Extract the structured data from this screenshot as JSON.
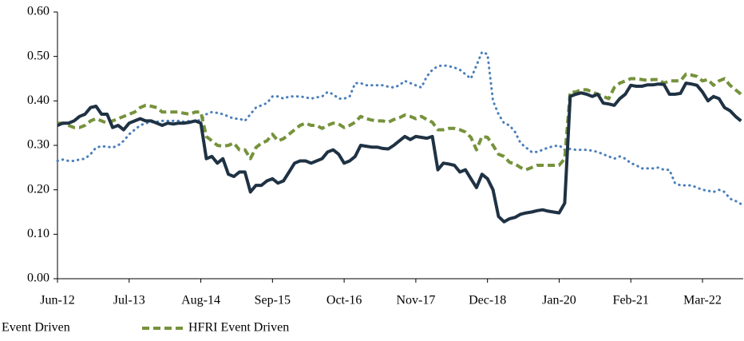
{
  "chart_data": {
    "type": "line",
    "categories": [
      "Jun-12",
      null,
      null,
      null,
      null,
      null,
      null,
      null,
      null,
      null,
      null,
      null,
      null,
      "Jul-13",
      null,
      null,
      null,
      null,
      null,
      null,
      null,
      null,
      null,
      null,
      null,
      null,
      "Aug-14",
      null,
      null,
      null,
      null,
      null,
      null,
      null,
      null,
      null,
      null,
      null,
      null,
      "Sep-15",
      null,
      null,
      null,
      null,
      null,
      null,
      null,
      null,
      null,
      null,
      null,
      null,
      "Oct-16",
      null,
      null,
      null,
      null,
      null,
      null,
      null,
      null,
      null,
      null,
      null,
      null,
      "Nov-17",
      null,
      null,
      null,
      null,
      null,
      null,
      null,
      null,
      null,
      null,
      null,
      null,
      "Dec-18",
      null,
      null,
      null,
      null,
      null,
      null,
      null,
      null,
      null,
      null,
      null,
      null,
      "Jan-20",
      null,
      null,
      null,
      null,
      null,
      null,
      null,
      null,
      null,
      null,
      null,
      null,
      "Feb-21",
      null,
      null,
      null,
      null,
      null,
      null,
      null,
      null,
      null,
      null,
      null,
      null,
      "Mar-22",
      null,
      null,
      null,
      null,
      null,
      null,
      null
    ],
    "series": [
      {
        "name": "Event Driven",
        "color": "#1f3244",
        "style": "solid",
        "values": [
          0.345,
          0.35,
          0.35,
          0.355,
          0.365,
          0.37,
          0.385,
          0.388,
          0.37,
          0.37,
          0.34,
          0.345,
          0.335,
          0.35,
          0.355,
          0.36,
          0.355,
          0.355,
          0.35,
          0.345,
          0.35,
          0.348,
          0.35,
          0.35,
          0.352,
          0.355,
          0.35,
          0.27,
          0.275,
          0.26,
          0.27,
          0.235,
          0.23,
          0.24,
          0.24,
          0.195,
          0.21,
          0.21,
          0.22,
          0.225,
          0.215,
          0.22,
          0.24,
          0.26,
          0.265,
          0.265,
          0.26,
          0.265,
          0.27,
          0.285,
          0.29,
          0.28,
          0.26,
          0.265,
          0.275,
          0.3,
          0.298,
          0.296,
          0.296,
          0.293,
          0.292,
          0.3,
          0.31,
          0.32,
          0.313,
          0.32,
          0.318,
          0.316,
          0.32,
          0.245,
          0.26,
          0.258,
          0.255,
          0.24,
          0.245,
          0.225,
          0.205,
          0.235,
          0.225,
          0.2,
          0.14,
          0.128,
          0.135,
          0.138,
          0.145,
          0.148,
          0.15,
          0.153,
          0.155,
          0.152,
          0.15,
          0.148,
          0.17,
          0.41,
          0.415,
          0.418,
          0.415,
          0.41,
          0.415,
          0.395,
          0.393,
          0.39,
          0.405,
          0.415,
          0.435,
          0.433,
          0.433,
          0.436,
          0.436,
          0.438,
          0.437,
          0.415,
          0.415,
          0.417,
          0.44,
          0.438,
          0.435,
          0.42,
          0.4,
          0.41,
          0.405,
          0.385,
          0.378,
          0.365,
          0.355
        ]
      },
      {
        "name": "HFRI Event Driven",
        "color": "#76923c",
        "style": "dashed",
        "values": [
          0.35,
          0.35,
          0.345,
          0.34,
          0.34,
          0.345,
          0.355,
          0.36,
          0.355,
          0.35,
          0.355,
          0.36,
          0.365,
          0.37,
          0.375,
          0.385,
          0.39,
          0.388,
          0.385,
          0.375,
          0.375,
          0.375,
          0.375,
          0.372,
          0.37,
          0.375,
          0.375,
          0.32,
          0.31,
          0.3,
          0.298,
          0.3,
          0.305,
          0.29,
          0.29,
          0.27,
          0.295,
          0.305,
          0.31,
          0.325,
          0.31,
          0.315,
          0.325,
          0.335,
          0.345,
          0.35,
          0.345,
          0.345,
          0.338,
          0.345,
          0.35,
          0.348,
          0.34,
          0.345,
          0.352,
          0.365,
          0.36,
          0.357,
          0.355,
          0.355,
          0.352,
          0.358,
          0.362,
          0.368,
          0.365,
          0.36,
          0.365,
          0.358,
          0.352,
          0.335,
          0.335,
          0.338,
          0.338,
          0.335,
          0.33,
          0.318,
          0.29,
          0.32,
          0.318,
          0.3,
          0.28,
          0.275,
          0.262,
          0.258,
          0.25,
          0.245,
          0.25,
          0.255,
          0.255,
          0.255,
          0.255,
          0.255,
          0.27,
          0.42,
          0.42,
          0.425,
          0.425,
          0.42,
          0.415,
          0.41,
          0.405,
          0.43,
          0.44,
          0.445,
          0.45,
          0.45,
          0.448,
          0.446,
          0.448,
          0.448,
          0.44,
          0.445,
          0.445,
          0.445,
          0.46,
          0.458,
          0.455,
          0.445,
          0.448,
          0.435,
          0.445,
          0.45,
          0.435,
          0.425,
          0.415
        ]
      },
      {
        "color": "#4a7ebb",
        "style": "dotted",
        "values": [
          0.265,
          0.268,
          0.265,
          0.265,
          0.268,
          0.27,
          0.28,
          0.295,
          0.298,
          0.297,
          0.295,
          0.3,
          0.31,
          0.325,
          0.335,
          0.345,
          0.35,
          0.352,
          0.353,
          0.355,
          0.355,
          0.355,
          0.355,
          0.353,
          0.355,
          0.355,
          0.357,
          0.37,
          0.375,
          0.373,
          0.37,
          0.365,
          0.36,
          0.36,
          0.355,
          0.37,
          0.385,
          0.39,
          0.395,
          0.41,
          0.41,
          0.405,
          0.41,
          0.41,
          0.41,
          0.408,
          0.405,
          0.408,
          0.41,
          0.42,
          0.415,
          0.405,
          0.405,
          0.41,
          0.44,
          0.44,
          0.435,
          0.435,
          0.435,
          0.435,
          0.432,
          0.43,
          0.435,
          0.445,
          0.44,
          0.435,
          0.43,
          0.455,
          0.47,
          0.478,
          0.48,
          0.478,
          0.475,
          0.47,
          0.46,
          0.45,
          0.48,
          0.51,
          0.505,
          0.4,
          0.37,
          0.35,
          0.345,
          0.33,
          0.305,
          0.295,
          0.285,
          0.285,
          0.29,
          0.295,
          0.298,
          0.3,
          0.29,
          0.292,
          0.29,
          0.29,
          0.29,
          0.288,
          0.285,
          0.28,
          0.275,
          0.27,
          0.275,
          0.27,
          0.26,
          0.255,
          0.248,
          0.248,
          0.248,
          0.25,
          0.245,
          0.245,
          0.215,
          0.21,
          0.21,
          0.21,
          0.205,
          0.2,
          0.198,
          0.195,
          0.2,
          0.195,
          0.18,
          0.175,
          0.168
        ]
      }
    ],
    "ylim": [
      0,
      0.6
    ],
    "yticks": [
      {
        "value": 0,
        "label": "0.00"
      },
      {
        "value": 0.1,
        "label": "0.10"
      },
      {
        "value": 0.2,
        "label": "0.20"
      },
      {
        "value": 0.3,
        "label": "0.30"
      },
      {
        "value": 0.4,
        "label": "0.40"
      },
      {
        "value": 0.5,
        "label": "0.50"
      },
      {
        "value": 0.6,
        "label": "0.60"
      }
    ],
    "grid": false
  }
}
